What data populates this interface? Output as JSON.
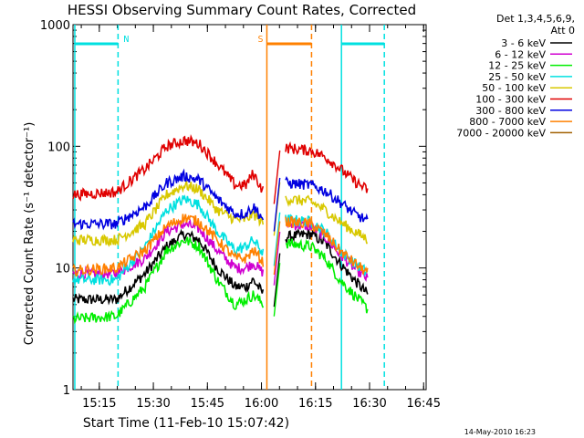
{
  "chart_data": {
    "type": "line",
    "title": "HESSI Observing Summary Count Rates, Corrected",
    "xlabel": "Start Time (11-Feb-10 15:07:42)",
    "ylabel": "Corrected Count Rate (s⁻¹ detector⁻¹)",
    "yscale": "log",
    "ylim": [
      1,
      1000
    ],
    "xlim_minutes": [
      0,
      98
    ],
    "x_ticks": [
      "15:15",
      "15:30",
      "15:45",
      "16:00",
      "16:15",
      "16:30",
      "16:45"
    ],
    "y_ticks": [
      "1",
      "10",
      "100",
      "1000"
    ],
    "timestamp": "14-May-2010 16:23",
    "legend_header_1": "Det 1,3,4,5,6,9,",
    "legend_header_2": "Att 0",
    "series": [
      {
        "name": "3 - 6 keV",
        "color": "#000000",
        "points": [
          [
            0,
            5.5
          ],
          [
            12,
            5.5
          ],
          [
            20,
            9
          ],
          [
            26,
            15
          ],
          [
            31,
            19
          ],
          [
            35,
            17
          ],
          [
            40,
            10
          ],
          [
            45,
            7
          ],
          [
            48,
            7
          ],
          [
            50,
            8
          ],
          [
            53,
            6
          ],
          [
            59,
            18
          ],
          [
            66,
            19
          ],
          [
            70,
            16
          ],
          [
            74,
            11
          ],
          [
            78,
            8
          ],
          [
            82,
            6
          ]
        ]
      },
      {
        "name": "6 - 12 keV",
        "color": "#d000d0",
        "points": [
          [
            0,
            9
          ],
          [
            12,
            9
          ],
          [
            20,
            12
          ],
          [
            26,
            20
          ],
          [
            31,
            23
          ],
          [
            35,
            21
          ],
          [
            40,
            14
          ],
          [
            45,
            10
          ],
          [
            48,
            10
          ],
          [
            50,
            11
          ],
          [
            53,
            9
          ],
          [
            59,
            23
          ],
          [
            66,
            22
          ],
          [
            70,
            18
          ],
          [
            74,
            13
          ],
          [
            78,
            10
          ],
          [
            82,
            8
          ]
        ]
      },
      {
        "name": "12 - 25 keV",
        "color": "#00ee00",
        "points": [
          [
            0,
            3.8
          ],
          [
            12,
            4
          ],
          [
            20,
            7
          ],
          [
            26,
            14
          ],
          [
            31,
            17
          ],
          [
            35,
            15
          ],
          [
            40,
            8
          ],
          [
            45,
            5
          ],
          [
            48,
            5.5
          ],
          [
            50,
            6
          ],
          [
            53,
            5
          ],
          [
            59,
            16
          ],
          [
            66,
            15
          ],
          [
            70,
            12
          ],
          [
            74,
            8
          ],
          [
            78,
            6
          ],
          [
            82,
            4.5
          ]
        ]
      },
      {
        "name": "25 - 50 keV",
        "color": "#00e0e0",
        "points": [
          [
            0,
            8
          ],
          [
            12,
            8
          ],
          [
            20,
            15
          ],
          [
            26,
            30
          ],
          [
            31,
            37
          ],
          [
            35,
            33
          ],
          [
            40,
            20
          ],
          [
            45,
            14
          ],
          [
            48,
            15
          ],
          [
            50,
            17
          ],
          [
            53,
            13
          ],
          [
            59,
            25
          ],
          [
            66,
            24
          ],
          [
            70,
            20
          ],
          [
            74,
            14
          ],
          [
            78,
            11
          ],
          [
            82,
            9
          ]
        ]
      },
      {
        "name": "50 - 100 keV",
        "color": "#d8c800",
        "points": [
          [
            0,
            17
          ],
          [
            12,
            17
          ],
          [
            20,
            23
          ],
          [
            26,
            40
          ],
          [
            31,
            48
          ],
          [
            35,
            44
          ],
          [
            40,
            30
          ],
          [
            45,
            25
          ],
          [
            48,
            25
          ],
          [
            50,
            28
          ],
          [
            53,
            23
          ],
          [
            59,
            37
          ],
          [
            66,
            35
          ],
          [
            70,
            30
          ],
          [
            74,
            24
          ],
          [
            78,
            20
          ],
          [
            82,
            17
          ]
        ]
      },
      {
        "name": "100 - 300 keV",
        "color": "#e00000",
        "points": [
          [
            0,
            40
          ],
          [
            12,
            42
          ],
          [
            20,
            65
          ],
          [
            26,
            100
          ],
          [
            31,
            112
          ],
          [
            35,
            105
          ],
          [
            40,
            72
          ],
          [
            45,
            48
          ],
          [
            48,
            48
          ],
          [
            50,
            60
          ],
          [
            53,
            42
          ],
          [
            59,
            97
          ],
          [
            66,
            92
          ],
          [
            70,
            82
          ],
          [
            74,
            66
          ],
          [
            78,
            52
          ],
          [
            82,
            43
          ]
        ]
      },
      {
        "name": "300 - 800 keV",
        "color": "#0000e0",
        "points": [
          [
            0,
            23
          ],
          [
            12,
            23
          ],
          [
            20,
            32
          ],
          [
            26,
            50
          ],
          [
            31,
            57
          ],
          [
            35,
            53
          ],
          [
            40,
            37
          ],
          [
            45,
            28
          ],
          [
            48,
            28
          ],
          [
            50,
            32
          ],
          [
            53,
            25
          ],
          [
            59,
            50
          ],
          [
            66,
            48
          ],
          [
            70,
            43
          ],
          [
            74,
            35
          ],
          [
            78,
            28
          ],
          [
            82,
            24
          ]
        ]
      },
      {
        "name": "800 - 7000 keV",
        "color": "#ff8000",
        "points": [
          [
            0,
            9.5
          ],
          [
            12,
            10
          ],
          [
            20,
            14
          ],
          [
            26,
            22
          ],
          [
            31,
            26
          ],
          [
            35,
            24
          ],
          [
            40,
            17
          ],
          [
            45,
            12
          ],
          [
            48,
            12
          ],
          [
            50,
            14
          ],
          [
            53,
            11
          ],
          [
            59,
            24
          ],
          [
            66,
            23
          ],
          [
            70,
            19
          ],
          [
            74,
            14
          ],
          [
            78,
            11
          ],
          [
            82,
            9
          ]
        ]
      },
      {
        "name": "7000 - 20000 keV",
        "color": "#a06000",
        "points": []
      }
    ],
    "markers": [
      {
        "label": "N",
        "color": "#00e0e0",
        "x_solid": 0.5,
        "x_dashed": 12.5
      },
      {
        "label": "S",
        "color": "#ff8000",
        "x_solid": 53.8,
        "x_dashed": 66.2
      },
      {
        "label": "",
        "color": "#00e0e0",
        "x_solid": 74.5,
        "x_dashed": 86.4
      }
    ]
  }
}
